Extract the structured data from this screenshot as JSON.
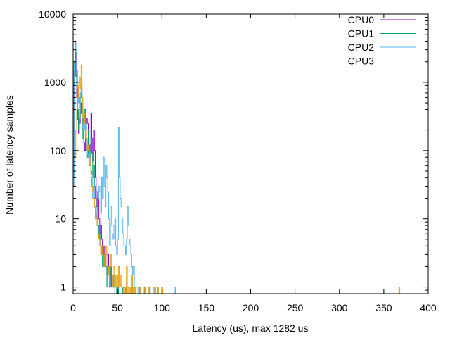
{
  "chart_data": {
    "type": "line",
    "step": true,
    "xlabel": "Latency (us), max 1282 us",
    "ylabel": "Number of latency samples",
    "xlim": [
      0,
      400
    ],
    "ylim": [
      0.8,
      10000
    ],
    "yscale": "log",
    "grid": false,
    "legend_position": "top-right",
    "x_ticks": [
      0,
      50,
      100,
      150,
      200,
      250,
      300,
      350,
      400
    ],
    "y_ticks": [
      1,
      10,
      100,
      1000,
      10000
    ],
    "series": [
      {
        "name": "CPU0",
        "color": "#9400d3",
        "x": [
          0,
          1,
          2,
          3,
          4,
          5,
          6,
          7,
          8,
          9,
          10,
          11,
          12,
          13,
          14,
          15,
          16,
          17,
          18,
          19,
          20,
          21,
          22,
          23,
          24,
          25,
          26,
          27,
          28,
          29,
          30,
          31,
          32,
          33,
          34,
          35,
          36,
          37,
          38,
          39,
          40,
          41,
          42,
          43,
          44,
          45,
          46,
          50,
          60,
          65,
          75,
          80,
          100
        ],
        "y": [
          60,
          1500,
          3100,
          1200,
          600,
          280,
          180,
          250,
          350,
          500,
          400,
          200,
          130,
          100,
          170,
          300,
          250,
          80,
          60,
          120,
          350,
          150,
          70,
          200,
          100,
          40,
          25,
          15,
          20,
          10,
          6,
          8,
          5,
          3,
          4,
          2,
          3,
          2,
          1.5,
          3,
          2,
          1.5,
          1,
          2,
          1.5,
          1,
          1,
          1,
          1,
          1,
          1,
          1,
          1
        ]
      },
      {
        "name": "CPU1",
        "color": "#009e73",
        "x": [
          0,
          1,
          2,
          3,
          4,
          5,
          6,
          7,
          8,
          9,
          10,
          11,
          12,
          13,
          14,
          15,
          16,
          17,
          18,
          19,
          20,
          21,
          22,
          23,
          24,
          25,
          26,
          27,
          28,
          29,
          30,
          31,
          32,
          33,
          34,
          35,
          36,
          37,
          38,
          39,
          40,
          41,
          42,
          43,
          44,
          45,
          46,
          47,
          48,
          50,
          55,
          60,
          68,
          80,
          95,
          115
        ],
        "y": [
          40,
          2000,
          4000,
          2500,
          900,
          400,
          200,
          300,
          600,
          800,
          300,
          150,
          200,
          400,
          250,
          120,
          80,
          200,
          100,
          60,
          150,
          90,
          40,
          60,
          30,
          20,
          15,
          10,
          8,
          5,
          6,
          4,
          3,
          2,
          3,
          2,
          3,
          2,
          1,
          1.5,
          2,
          1,
          2,
          1.5,
          1,
          1,
          1.5,
          1,
          1,
          1,
          1,
          1,
          1,
          1,
          1,
          1
        ]
      },
      {
        "name": "CPU2",
        "color": "#56b4e9",
        "x": [
          0,
          1,
          2,
          3,
          4,
          5,
          6,
          7,
          8,
          9,
          10,
          11,
          12,
          13,
          14,
          15,
          16,
          17,
          18,
          19,
          20,
          21,
          22,
          23,
          24,
          25,
          26,
          27,
          28,
          29,
          30,
          31,
          32,
          33,
          34,
          35,
          36,
          37,
          38,
          39,
          40,
          41,
          42,
          43,
          44,
          45,
          46,
          47,
          48,
          49,
          50,
          51,
          52,
          53,
          54,
          55,
          56,
          57,
          58,
          59,
          60,
          61,
          62,
          63,
          64,
          65,
          66,
          67,
          68,
          69,
          70,
          71,
          72,
          75,
          80,
          86,
          92,
          100,
          115
        ],
        "y": [
          30,
          1800,
          3500,
          2800,
          1500,
          800,
          500,
          600,
          700,
          900,
          500,
          300,
          250,
          200,
          150,
          100,
          90,
          80,
          70,
          60,
          50,
          45,
          20,
          30,
          15,
          10,
          12,
          8,
          20,
          30,
          25,
          12,
          40,
          20,
          80,
          30,
          15,
          60,
          40,
          25,
          10,
          4,
          8,
          15,
          6,
          5,
          8,
          10,
          4,
          3,
          5,
          220,
          40,
          20,
          15,
          10,
          6,
          4,
          4,
          3,
          5,
          15,
          8,
          5,
          4,
          3,
          2,
          1.5,
          2,
          1,
          1,
          1,
          1,
          1,
          1,
          1,
          1,
          1,
          1
        ]
      },
      {
        "name": "CPU3",
        "color": "#e69f00",
        "x": [
          0,
          1,
          2,
          3,
          4,
          5,
          6,
          7,
          8,
          9,
          10,
          11,
          12,
          13,
          14,
          15,
          16,
          17,
          18,
          19,
          20,
          21,
          22,
          23,
          24,
          25,
          26,
          27,
          28,
          29,
          30,
          31,
          32,
          33,
          34,
          35,
          36,
          37,
          38,
          39,
          40,
          41,
          42,
          43,
          44,
          45,
          46,
          47,
          48,
          49,
          50,
          51,
          52,
          53,
          54,
          55,
          56,
          58,
          60,
          62,
          64,
          66,
          68,
          70,
          75,
          80,
          85,
          90,
          95,
          100,
          367
        ],
        "y": [
          1,
          1,
          80,
          200,
          400,
          600,
          900,
          1200,
          800,
          1800,
          600,
          300,
          350,
          250,
          200,
          150,
          100,
          120,
          80,
          60,
          40,
          30,
          25,
          20,
          15,
          12,
          10,
          8,
          6,
          5,
          4,
          3,
          4,
          3,
          2,
          3,
          2,
          4,
          3,
          2,
          1.5,
          2,
          3,
          2,
          1.5,
          1,
          2,
          1.5,
          1,
          1.5,
          1,
          2,
          1,
          1.5,
          1,
          1,
          1,
          1,
          2,
          1,
          1,
          1.5,
          1,
          1,
          1,
          1,
          1,
          1,
          1,
          1,
          1
        ]
      }
    ]
  }
}
